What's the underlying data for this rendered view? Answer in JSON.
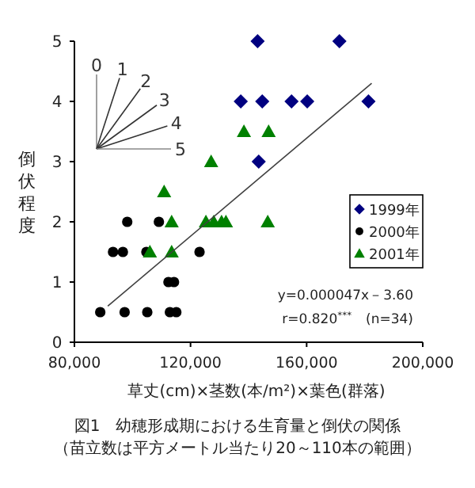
{
  "chart_data": {
    "type": "scatter",
    "title": "図1　幼穂形成期における生育量と倒伏の関係",
    "subtitle": "（苗立数は平方メートル当たり20～110本の範囲）",
    "xlabel": "草丈(cm)×茎数(本/m²)×葉色(群落)",
    "ylabel": "倒伏程度",
    "xlim": [
      80000,
      200000
    ],
    "ylim": [
      0,
      5
    ],
    "xticks": [
      {
        "value": 80000,
        "label": "80,000"
      },
      {
        "value": 120000,
        "label": "120,000"
      },
      {
        "value": 160000,
        "label": "160,000"
      },
      {
        "value": 200000,
        "label": "200,000"
      }
    ],
    "yticks": [
      0,
      1,
      2,
      3,
      4,
      5
    ],
    "grid": false,
    "legend": "right",
    "annotations": [
      "y=0.000047x－3.60",
      "r=0.820$^{***}$　(n=34)",
      "0",
      "1",
      "2",
      "3",
      "4",
      "5"
    ],
    "series": [
      {
        "name": "1999年",
        "color": "#000080",
        "marker": "diamond",
        "x": [
          143100,
          171300,
          137300,
          144700,
          154800,
          160200,
          181300,
          143500
        ],
        "values": [
          5,
          5,
          4,
          4,
          4,
          4,
          4,
          3
        ]
      },
      {
        "name": "2000年",
        "color": "#000000",
        "marker": "circle",
        "x": [
          98200,
          109100,
          93300,
          96700,
          104800,
          123100,
          112400,
          114300,
          88900,
          97300,
          105100,
          112900,
          115100
        ],
        "values": [
          2,
          2,
          1.5,
          1.5,
          1.5,
          1.5,
          1,
          1,
          0.5,
          0.5,
          0.5,
          0.5,
          0.5
        ]
      },
      {
        "name": "2001年",
        "color": "#008000",
        "marker": "triangle",
        "x": [
          138400,
          146900,
          127100,
          110900,
          113500,
          125300,
          128000,
          130700,
          132200,
          146600,
          106000,
          113500
        ],
        "values": [
          3.5,
          3.5,
          3,
          2.5,
          2,
          2,
          2,
          2,
          2,
          2,
          1.5,
          1.5
        ]
      },
      {
        "type": "line",
        "color": "#404040",
        "marker": "none",
        "x": [
          91500,
          182400
        ],
        "values": [
          0.6,
          4.3
        ]
      }
    ]
  }
}
